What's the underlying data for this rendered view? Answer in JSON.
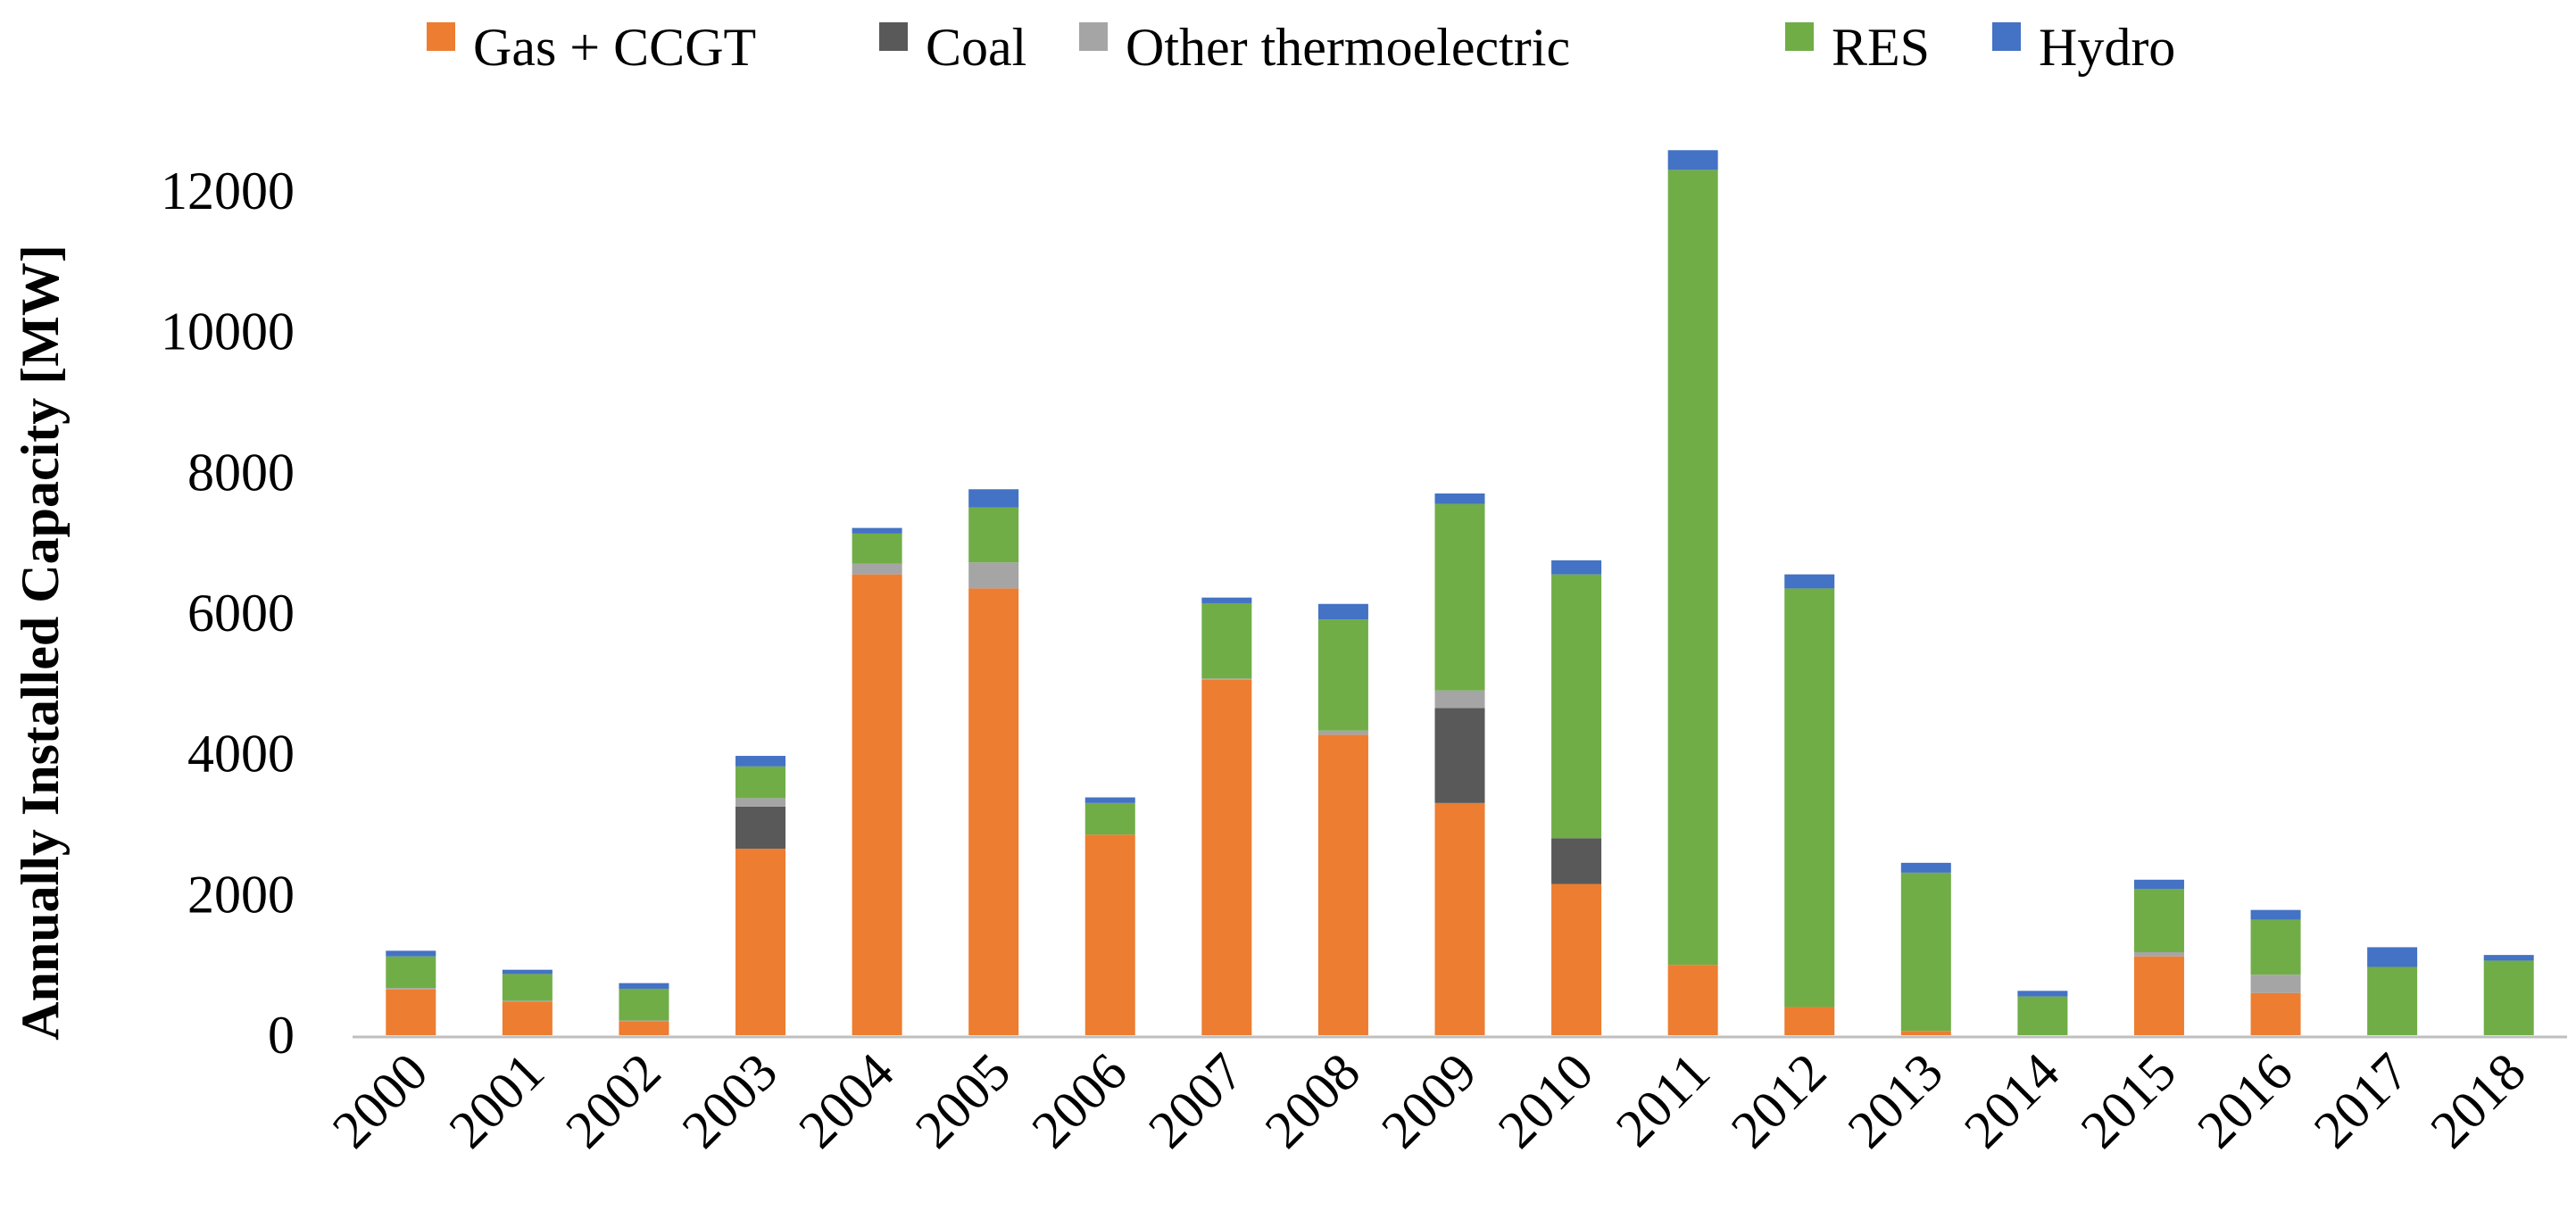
{
  "chart_data": {
    "type": "bar",
    "stacked": true,
    "title": "",
    "xlabel": "",
    "ylabel": "Annually Installed Capacity [MW]",
    "ylim": [
      0,
      12000
    ],
    "yticks": [
      0,
      2000,
      4000,
      6000,
      8000,
      10000,
      12000
    ],
    "grid": false,
    "legend_position": "top",
    "categories": [
      "2000",
      "2001",
      "2002",
      "2003",
      "2004",
      "2005",
      "2006",
      "2007",
      "2008",
      "2009",
      "2010",
      "2011",
      "2012",
      "2013",
      "2014",
      "2015",
      "2016",
      "2017",
      "2018"
    ],
    "series": [
      {
        "name": "Gas + CCGT",
        "color": "#ED7D31",
        "values": [
          650,
          480,
          200,
          2650,
          6550,
          6350,
          2850,
          5050,
          4270,
          3300,
          2150,
          1000,
          400,
          60,
          0,
          1120,
          600,
          0,
          0
        ]
      },
      {
        "name": "Coal",
        "color": "#595959",
        "values": [
          0,
          0,
          0,
          600,
          0,
          0,
          0,
          0,
          0,
          1350,
          650,
          0,
          0,
          0,
          0,
          0,
          0,
          0,
          0
        ]
      },
      {
        "name": "Other thermoelectric",
        "color": "#A5A5A5",
        "values": [
          20,
          10,
          10,
          120,
          150,
          370,
          0,
          20,
          60,
          250,
          0,
          0,
          0,
          0,
          0,
          60,
          260,
          0,
          0
        ]
      },
      {
        "name": "RES",
        "color": "#70AD47",
        "values": [
          450,
          380,
          450,
          450,
          430,
          780,
          450,
          1070,
          1580,
          2650,
          3750,
          11300,
          5950,
          2250,
          550,
          900,
          780,
          970,
          1060
        ]
      },
      {
        "name": "Hydro",
        "color": "#4472C4",
        "values": [
          80,
          60,
          80,
          150,
          80,
          260,
          80,
          80,
          220,
          150,
          200,
          280,
          200,
          140,
          80,
          130,
          140,
          280,
          80
        ]
      }
    ]
  }
}
